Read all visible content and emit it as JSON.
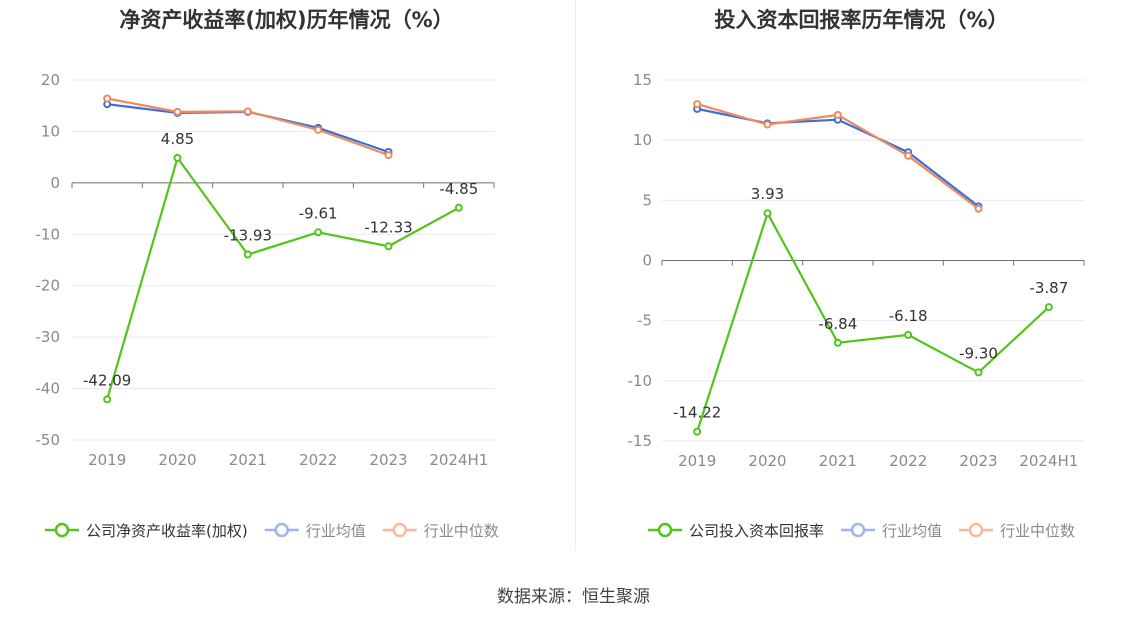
{
  "source_text": "数据来源：恒生聚源",
  "chart_data": [
    {
      "type": "line",
      "title": "净资产收益率(加权)历年情况（%）",
      "categories": [
        "2019",
        "2020",
        "2021",
        "2022",
        "2023",
        "2024H1"
      ],
      "ylim": [
        -50,
        20
      ],
      "yticks": [
        20,
        10,
        0,
        -10,
        -20,
        -30,
        -40,
        -50
      ],
      "grid": true,
      "legend_position": "bottom",
      "series": [
        {
          "name": "公司净资产收益率(加权)",
          "color": "#52c41a",
          "values": [
            -42.09,
            4.85,
            -13.93,
            -9.61,
            -12.33,
            -4.85
          ],
          "labels": [
            "-42.09",
            "4.85",
            "-13.93",
            "-9.61",
            "-12.33",
            "-4.85"
          ]
        },
        {
          "name": "行业均值",
          "color": "#3b6fd8",
          "values": [
            15.3,
            13.6,
            13.8,
            10.7,
            6.0,
            null
          ]
        },
        {
          "name": "行业中位数",
          "color": "#f08a5d",
          "values": [
            16.4,
            13.8,
            13.9,
            10.3,
            5.4,
            null
          ]
        }
      ]
    },
    {
      "type": "line",
      "title": "投入资本回报率历年情况（%）",
      "categories": [
        "2019",
        "2020",
        "2021",
        "2022",
        "2023",
        "2024H1"
      ],
      "ylim": [
        -15,
        15
      ],
      "yticks": [
        15,
        10,
        5,
        0,
        -5,
        -10,
        -15
      ],
      "grid": true,
      "legend_position": "bottom",
      "series": [
        {
          "name": "公司投入资本回报率",
          "color": "#52c41a",
          "values": [
            -14.22,
            3.93,
            -6.84,
            -6.18,
            -9.3,
            -3.87
          ],
          "labels": [
            "-14.22",
            "3.93",
            "-6.84",
            "-6.18",
            "-9.30",
            "-3.87"
          ]
        },
        {
          "name": "行业均值",
          "color": "#3b6fd8",
          "values": [
            12.6,
            11.4,
            11.7,
            9.0,
            4.5,
            null
          ]
        },
        {
          "name": "行业中位数",
          "color": "#f08a5d",
          "values": [
            13.0,
            11.3,
            12.1,
            8.7,
            4.3,
            null
          ]
        }
      ]
    }
  ]
}
